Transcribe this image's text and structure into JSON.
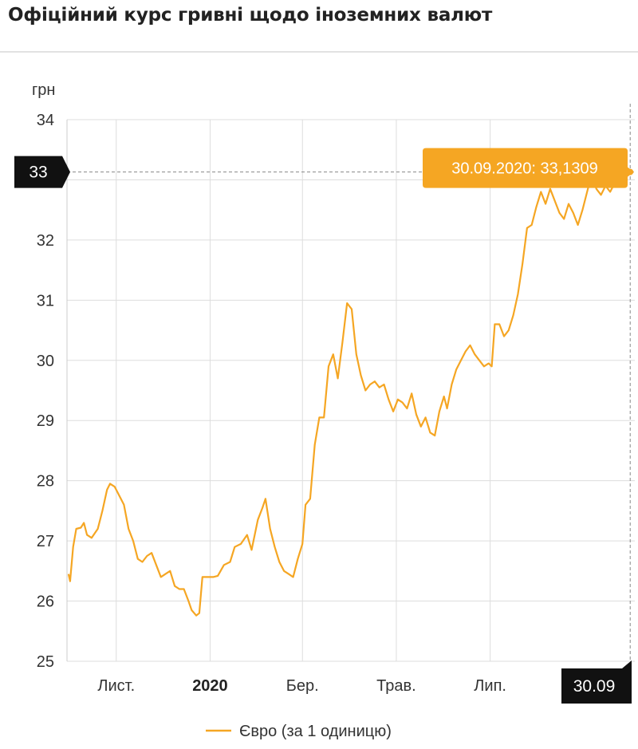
{
  "page": {
    "title": "Офіційний курс гривні щодо іноземних валют"
  },
  "colors": {
    "series": "#F5A623",
    "tooltip_bg": "#F5A623",
    "axis_badge_bg": "#111111",
    "grid": "#dddddd"
  },
  "chart_data": {
    "type": "line",
    "ylabel": "грн",
    "ylim": [
      25,
      34
    ],
    "y_ticks": [
      25,
      26,
      27,
      28,
      29,
      30,
      31,
      32,
      33,
      34
    ],
    "x_ticks": [
      {
        "label": "Лист.",
        "date": "2019-11-01",
        "bold": false
      },
      {
        "label": "2020",
        "date": "2020-01-01",
        "bold": true
      },
      {
        "label": "Бер.",
        "date": "2020-03-01",
        "bold": false
      },
      {
        "label": "Трав.",
        "date": "2020-05-01",
        "bold": false
      },
      {
        "label": "Лип.",
        "date": "2020-07-01",
        "bold": false
      }
    ],
    "xlim": [
      "2019-09-30",
      "2020-10-03"
    ],
    "grid": true,
    "legend": "bottom-center",
    "series": [
      {
        "name": "Євро (за 1 одиницю)",
        "points": [
          [
            "2019-10-01",
            26.45
          ],
          [
            "2019-10-02",
            26.33
          ],
          [
            "2019-10-04",
            26.9
          ],
          [
            "2019-10-06",
            27.2
          ],
          [
            "2019-10-09",
            27.22
          ],
          [
            "2019-10-11",
            27.3
          ],
          [
            "2019-10-13",
            27.1
          ],
          [
            "2019-10-16",
            27.05
          ],
          [
            "2019-10-20",
            27.2
          ],
          [
            "2019-10-23",
            27.5
          ],
          [
            "2019-10-26",
            27.85
          ],
          [
            "2019-10-28",
            27.95
          ],
          [
            "2019-10-31",
            27.9
          ],
          [
            "2019-11-03",
            27.75
          ],
          [
            "2019-11-06",
            27.6
          ],
          [
            "2019-11-09",
            27.2
          ],
          [
            "2019-11-12",
            27.0
          ],
          [
            "2019-11-15",
            26.7
          ],
          [
            "2019-11-18",
            26.65
          ],
          [
            "2019-11-21",
            26.75
          ],
          [
            "2019-11-24",
            26.8
          ],
          [
            "2019-11-27",
            26.6
          ],
          [
            "2019-11-30",
            26.4
          ],
          [
            "2019-12-03",
            26.45
          ],
          [
            "2019-12-06",
            26.5
          ],
          [
            "2019-12-09",
            26.25
          ],
          [
            "2019-12-12",
            26.2
          ],
          [
            "2019-12-15",
            26.2
          ],
          [
            "2019-12-18",
            26.0
          ],
          [
            "2019-12-20",
            25.85
          ],
          [
            "2019-12-23",
            25.76
          ],
          [
            "2019-12-25",
            25.8
          ],
          [
            "2019-12-27",
            26.4
          ],
          [
            "2019-12-30",
            26.4
          ],
          [
            "2020-01-03",
            26.4
          ],
          [
            "2020-01-06",
            26.42
          ],
          [
            "2020-01-10",
            26.6
          ],
          [
            "2020-01-14",
            26.65
          ],
          [
            "2020-01-17",
            26.9
          ],
          [
            "2020-01-21",
            26.95
          ],
          [
            "2020-01-25",
            27.1
          ],
          [
            "2020-01-28",
            26.85
          ],
          [
            "2020-02-01",
            27.35
          ],
          [
            "2020-02-04",
            27.55
          ],
          [
            "2020-02-06",
            27.7
          ],
          [
            "2020-02-09",
            27.2
          ],
          [
            "2020-02-12",
            26.9
          ],
          [
            "2020-02-15",
            26.65
          ],
          [
            "2020-02-18",
            26.5
          ],
          [
            "2020-02-21",
            26.45
          ],
          [
            "2020-02-24",
            26.4
          ],
          [
            "2020-02-27",
            26.7
          ],
          [
            "2020-03-01",
            26.95
          ],
          [
            "2020-03-03",
            27.6
          ],
          [
            "2020-03-06",
            27.7
          ],
          [
            "2020-03-09",
            28.6
          ],
          [
            "2020-03-12",
            29.05
          ],
          [
            "2020-03-15",
            29.05
          ],
          [
            "2020-03-18",
            29.9
          ],
          [
            "2020-03-21",
            30.1
          ],
          [
            "2020-03-24",
            29.7
          ],
          [
            "2020-03-27",
            30.3
          ],
          [
            "2020-03-30",
            30.95
          ],
          [
            "2020-04-02",
            30.85
          ],
          [
            "2020-04-05",
            30.1
          ],
          [
            "2020-04-08",
            29.75
          ],
          [
            "2020-04-11",
            29.5
          ],
          [
            "2020-04-14",
            29.6
          ],
          [
            "2020-04-17",
            29.65
          ],
          [
            "2020-04-20",
            29.55
          ],
          [
            "2020-04-23",
            29.6
          ],
          [
            "2020-04-26",
            29.35
          ],
          [
            "2020-04-29",
            29.15
          ],
          [
            "2020-05-02",
            29.35
          ],
          [
            "2020-05-05",
            29.3
          ],
          [
            "2020-05-08",
            29.2
          ],
          [
            "2020-05-11",
            29.45
          ],
          [
            "2020-05-14",
            29.1
          ],
          [
            "2020-05-17",
            28.9
          ],
          [
            "2020-05-20",
            29.05
          ],
          [
            "2020-05-23",
            28.8
          ],
          [
            "2020-05-26",
            28.75
          ],
          [
            "2020-05-29",
            29.15
          ],
          [
            "2020-06-01",
            29.4
          ],
          [
            "2020-06-03",
            29.2
          ],
          [
            "2020-06-06",
            29.6
          ],
          [
            "2020-06-09",
            29.85
          ],
          [
            "2020-06-12",
            30.0
          ],
          [
            "2020-06-15",
            30.15
          ],
          [
            "2020-06-18",
            30.25
          ],
          [
            "2020-06-21",
            30.1
          ],
          [
            "2020-06-24",
            30.0
          ],
          [
            "2020-06-27",
            29.9
          ],
          [
            "2020-06-30",
            29.95
          ],
          [
            "2020-07-02",
            29.9
          ],
          [
            "2020-07-04",
            30.6
          ],
          [
            "2020-07-07",
            30.6
          ],
          [
            "2020-07-10",
            30.4
          ],
          [
            "2020-07-13",
            30.5
          ],
          [
            "2020-07-16",
            30.75
          ],
          [
            "2020-07-19",
            31.1
          ],
          [
            "2020-07-22",
            31.6
          ],
          [
            "2020-07-25",
            32.2
          ],
          [
            "2020-07-28",
            32.25
          ],
          [
            "2020-07-31",
            32.55
          ],
          [
            "2020-08-03",
            32.8
          ],
          [
            "2020-08-06",
            32.6
          ],
          [
            "2020-08-09",
            32.85
          ],
          [
            "2020-08-12",
            32.65
          ],
          [
            "2020-08-15",
            32.45
          ],
          [
            "2020-08-18",
            32.35
          ],
          [
            "2020-08-21",
            32.6
          ],
          [
            "2020-08-24",
            32.45
          ],
          [
            "2020-08-27",
            32.25
          ],
          [
            "2020-08-30",
            32.5
          ],
          [
            "2020-09-02",
            32.8
          ],
          [
            "2020-09-05",
            33.1
          ],
          [
            "2020-09-08",
            32.85
          ],
          [
            "2020-09-11",
            32.75
          ],
          [
            "2020-09-14",
            32.9
          ],
          [
            "2020-09-17",
            32.8
          ],
          [
            "2020-09-20",
            32.95
          ],
          [
            "2020-09-23",
            33.0
          ],
          [
            "2020-09-26",
            33.05
          ],
          [
            "2020-09-30",
            33.1309
          ]
        ]
      }
    ],
    "crosshair": {
      "y_label": "33",
      "x_label": "30.09",
      "tooltip": "30.09.2020: 33,1309"
    }
  }
}
